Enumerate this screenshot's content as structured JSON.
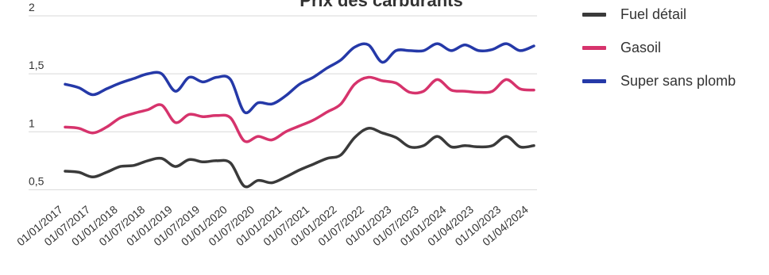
{
  "chart_data": {
    "type": "line",
    "title": "Prix des carburants",
    "xlabel": "",
    "ylabel": "",
    "ylim": [
      0.4,
      2.0
    ],
    "yticks": [
      "0,5",
      "1",
      "1,5",
      "2"
    ],
    "ytick_values": [
      0.5,
      1.0,
      1.5,
      2.0
    ],
    "grid": true,
    "legend_position": "top-right",
    "x_tick_labels": [
      "01/01/2017",
      "01/07/2017",
      "01/01/2018",
      "01/07/2018",
      "01/01/2019",
      "01/07/2019",
      "01/01/2020",
      "01/07/2020",
      "01/01/2021",
      "01/07/2021",
      "01/01/2022",
      "01/07/2022",
      "01/01/2023",
      "01/07/2023",
      "01/01/2024",
      "01/04/2023",
      "01/10/2023",
      "01/04/2024"
    ],
    "series": [
      {
        "name": "Fuel détail",
        "color": "#3a3a3a",
        "values": [
          0.66,
          0.65,
          0.61,
          0.65,
          0.7,
          0.71,
          0.75,
          0.77,
          0.7,
          0.76,
          0.74,
          0.75,
          0.73,
          0.53,
          0.58,
          0.56,
          0.61,
          0.67,
          0.72,
          0.77,
          0.8,
          0.95,
          1.03,
          0.99,
          0.95,
          0.87,
          0.88,
          0.96,
          0.87,
          0.88,
          0.87,
          0.88,
          0.96,
          0.87,
          0.88
        ]
      },
      {
        "name": "Gasoil",
        "color": "#d6336c",
        "values": [
          1.04,
          1.03,
          0.99,
          1.04,
          1.12,
          1.16,
          1.19,
          1.23,
          1.08,
          1.15,
          1.13,
          1.14,
          1.12,
          0.92,
          0.96,
          0.93,
          1.0,
          1.05,
          1.1,
          1.17,
          1.24,
          1.41,
          1.47,
          1.44,
          1.42,
          1.34,
          1.35,
          1.45,
          1.36,
          1.35,
          1.34,
          1.35,
          1.45,
          1.37,
          1.36
        ]
      },
      {
        "name": "Super sans plomb",
        "color": "#2539a8",
        "values": [
          1.41,
          1.38,
          1.32,
          1.37,
          1.42,
          1.46,
          1.5,
          1.5,
          1.35,
          1.47,
          1.43,
          1.47,
          1.45,
          1.17,
          1.25,
          1.24,
          1.31,
          1.41,
          1.47,
          1.55,
          1.62,
          1.73,
          1.75,
          1.6,
          1.7,
          1.7,
          1.7,
          1.76,
          1.7,
          1.75,
          1.7,
          1.71,
          1.76,
          1.7,
          1.74
        ]
      }
    ]
  }
}
